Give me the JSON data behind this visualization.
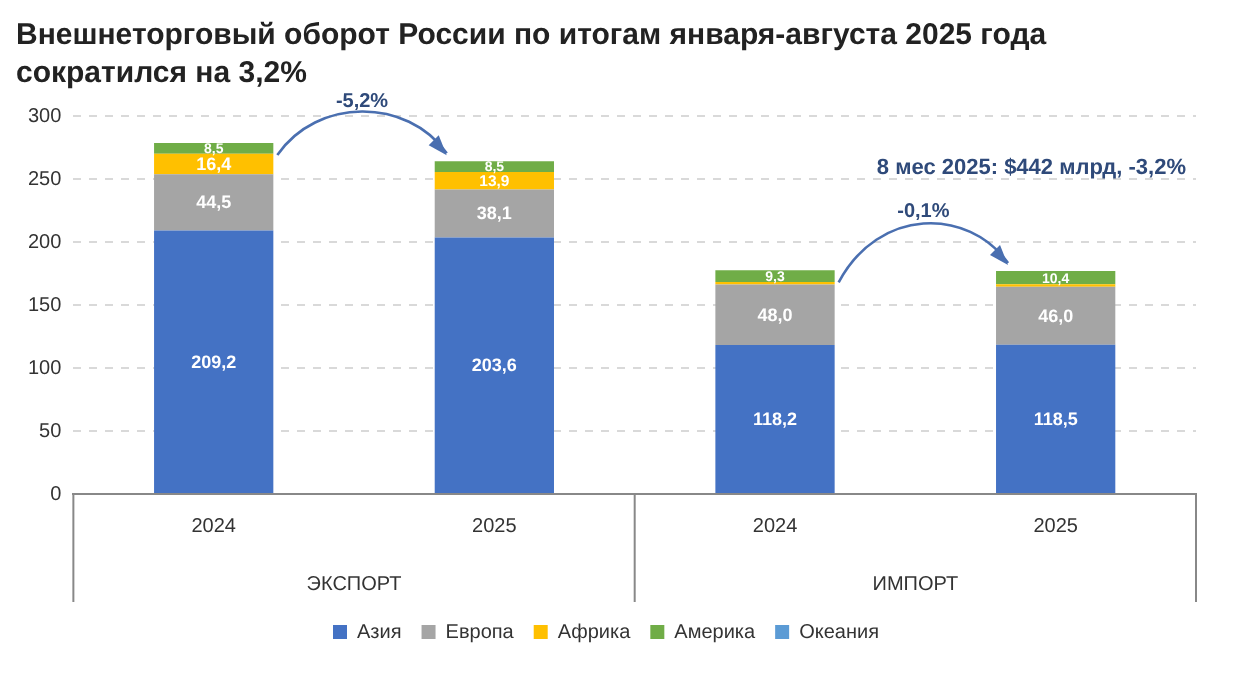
{
  "chart_data": {
    "type": "bar",
    "title": "Внешнеторговый оборот России по итогам января-августа 2025 года сократился на 3,2%",
    "categories": [
      "2024",
      "2025",
      "2024",
      "2025"
    ],
    "stacked": true,
    "series": [
      {
        "name": "Азия",
        "color": "#4472c4",
        "values": [
          209.2,
          203.6,
          118.2,
          118.5
        ],
        "value_labels": [
          "209,2",
          "203,6",
          "118,2",
          "118,5"
        ]
      },
      {
        "name": "Европа",
        "color": "#a5a5a5",
        "values": [
          44.5,
          38.1,
          48.0,
          46.0
        ],
        "value_labels": [
          "44,5",
          "38,1",
          "48,0",
          "46,0"
        ]
      },
      {
        "name": "Африка",
        "color": "#ffc000",
        "values": [
          16.4,
          13.9,
          2,
          2
        ],
        "value_labels": [
          "16,4",
          "13,9",
          null,
          null
        ]
      },
      {
        "name": "Америка",
        "color": "#70ad47",
        "values": [
          8.5,
          8.5,
          9.3,
          10.4
        ],
        "value_labels": [
          "8,5",
          "8,5",
          "9,3",
          "10,4"
        ]
      },
      {
        "name": "Океания",
        "color": "#5b9bd5",
        "values": [
          null,
          null,
          null,
          null
        ]
      }
    ],
    "ylim": [
      0,
      300
    ],
    "yticks": [
      0,
      50,
      100,
      150,
      200,
      250,
      300
    ],
    "grid": "y",
    "legend": "bottom",
    "annotations": [
      "8 мес 2025: $442 млрд, -3,2%",
      "-5,2%",
      "-0,1%",
      "ЭКСПОРТ",
      "ИМПОРТ"
    ]
  }
}
